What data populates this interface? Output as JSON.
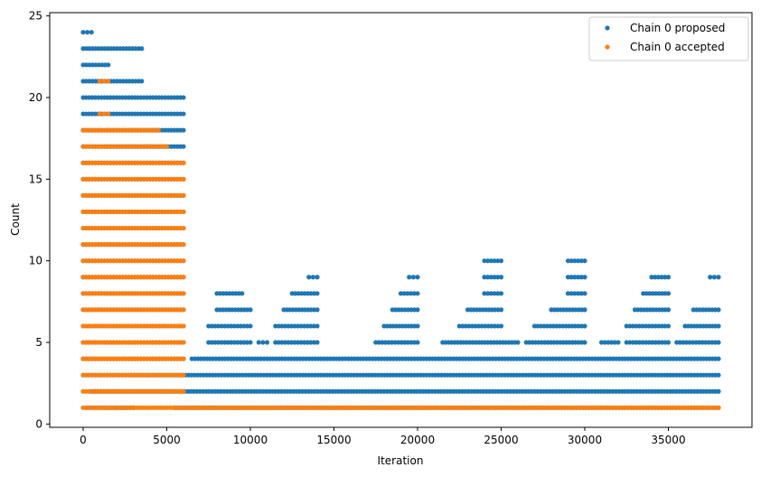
{
  "chart_data": {
    "type": "scatter",
    "title": "",
    "xlabel": "Iteration",
    "ylabel": "Count",
    "xlim": [
      -2000,
      40000
    ],
    "ylim": [
      -0.2,
      25.2
    ],
    "xticks": [
      0,
      5000,
      10000,
      15000,
      20000,
      25000,
      30000,
      35000
    ],
    "yticks": [
      0,
      5,
      10,
      15,
      20,
      25
    ],
    "legend_position": "top-right",
    "grid": false,
    "series": [
      {
        "name": "Chain 0 proposed",
        "color": "#1f77b4",
        "bands": [
          {
            "y": 1,
            "x_ranges": [
              [
                200,
                3000
              ],
              [
                5500,
                38000
              ]
            ]
          },
          {
            "y": 2,
            "x_ranges": [
              [
                500,
                38000
              ]
            ]
          },
          {
            "y": 3,
            "x_ranges": [
              [
                0,
                38000
              ]
            ]
          },
          {
            "y": 4,
            "x_ranges": [
              [
                0,
                6000
              ],
              [
                6500,
                38000
              ]
            ]
          },
          {
            "y": 5,
            "x_ranges": [
              [
                0,
                6000
              ],
              [
                7500,
                10000
              ],
              [
                10500,
                11000
              ],
              [
                11500,
                14000
              ],
              [
                17500,
                20000
              ],
              [
                21500,
                26000
              ],
              [
                26500,
                30000
              ],
              [
                31000,
                32000
              ],
              [
                32500,
                35000
              ],
              [
                35500,
                38000
              ]
            ]
          },
          {
            "y": 6,
            "x_ranges": [
              [
                0,
                6000
              ],
              [
                7500,
                10000
              ],
              [
                11500,
                14000
              ],
              [
                18000,
                20000
              ],
              [
                22500,
                25000
              ],
              [
                27000,
                30000
              ],
              [
                32500,
                35000
              ],
              [
                36000,
                38000
              ]
            ]
          },
          {
            "y": 7,
            "x_ranges": [
              [
                0,
                6000
              ],
              [
                8000,
                10000
              ],
              [
                12000,
                14000
              ],
              [
                18500,
                20000
              ],
              [
                23000,
                25000
              ],
              [
                28000,
                30000
              ],
              [
                33000,
                35000
              ],
              [
                36500,
                38000
              ]
            ]
          },
          {
            "y": 8,
            "x_ranges": [
              [
                0,
                6000
              ],
              [
                8000,
                9500
              ],
              [
                12500,
                14000
              ],
              [
                19000,
                20000
              ],
              [
                24000,
                25000
              ],
              [
                29000,
                30000
              ],
              [
                33500,
                35000
              ]
            ]
          },
          {
            "y": 9,
            "x_ranges": [
              [
                0,
                6000
              ],
              [
                13500,
                14000
              ],
              [
                19500,
                20000
              ],
              [
                24000,
                25000
              ],
              [
                29000,
                30000
              ],
              [
                34000,
                35000
              ],
              [
                37500,
                38000
              ]
            ]
          },
          {
            "y": 10,
            "x_ranges": [
              [
                0,
                6000
              ],
              [
                24000,
                25000
              ],
              [
                29000,
                30000
              ]
            ]
          },
          {
            "y": 11,
            "x_ranges": [
              [
                0,
                6000
              ]
            ]
          },
          {
            "y": 12,
            "x_ranges": [
              [
                0,
                6000
              ]
            ]
          },
          {
            "y": 13,
            "x_ranges": [
              [
                0,
                6000
              ]
            ]
          },
          {
            "y": 14,
            "x_ranges": [
              [
                0,
                6000
              ]
            ]
          },
          {
            "y": 15,
            "x_ranges": [
              [
                0,
                6000
              ]
            ]
          },
          {
            "y": 16,
            "x_ranges": [
              [
                0,
                6000
              ]
            ]
          },
          {
            "y": 17,
            "x_ranges": [
              [
                0,
                6000
              ]
            ]
          },
          {
            "y": 18,
            "x_ranges": [
              [
                0,
                6000
              ]
            ]
          },
          {
            "y": 19,
            "x_ranges": [
              [
                0,
                6000
              ]
            ]
          },
          {
            "y": 20,
            "x_ranges": [
              [
                0,
                6000
              ]
            ]
          },
          {
            "y": 21,
            "x_ranges": [
              [
                0,
                3500
              ]
            ]
          },
          {
            "y": 22,
            "x_ranges": [
              [
                0,
                1500
              ]
            ]
          },
          {
            "y": 23,
            "x_ranges": [
              [
                0,
                3500
              ]
            ]
          },
          {
            "y": 24,
            "x_ranges": [
              [
                0,
                500
              ]
            ]
          }
        ]
      },
      {
        "name": "Chain 0 accepted",
        "color": "#ff7f0e",
        "bands": [
          {
            "y": 1,
            "x_ranges": [
              [
                0,
                38000
              ]
            ]
          },
          {
            "y": 2,
            "x_ranges": [
              [
                0,
                6000
              ]
            ]
          },
          {
            "y": 3,
            "x_ranges": [
              [
                0,
                6000
              ]
            ]
          },
          {
            "y": 4,
            "x_ranges": [
              [
                0,
                6000
              ]
            ]
          },
          {
            "y": 5,
            "x_ranges": [
              [
                0,
                6000
              ]
            ]
          },
          {
            "y": 6,
            "x_ranges": [
              [
                0,
                6000
              ]
            ]
          },
          {
            "y": 7,
            "x_ranges": [
              [
                0,
                6000
              ]
            ]
          },
          {
            "y": 8,
            "x_ranges": [
              [
                0,
                6000
              ]
            ]
          },
          {
            "y": 9,
            "x_ranges": [
              [
                0,
                6000
              ]
            ]
          },
          {
            "y": 10,
            "x_ranges": [
              [
                0,
                6000
              ]
            ]
          },
          {
            "y": 11,
            "x_ranges": [
              [
                0,
                6000
              ]
            ]
          },
          {
            "y": 12,
            "x_ranges": [
              [
                0,
                6000
              ]
            ]
          },
          {
            "y": 13,
            "x_ranges": [
              [
                0,
                6000
              ]
            ]
          },
          {
            "y": 14,
            "x_ranges": [
              [
                0,
                6000
              ]
            ]
          },
          {
            "y": 15,
            "x_ranges": [
              [
                0,
                6000
              ]
            ]
          },
          {
            "y": 16,
            "x_ranges": [
              [
                0,
                6000
              ]
            ]
          },
          {
            "y": 17,
            "x_ranges": [
              [
                0,
                5000
              ]
            ]
          },
          {
            "y": 18,
            "x_ranges": [
              [
                0,
                4500
              ]
            ]
          },
          {
            "y": 19,
            "x_ranges": [
              [
                1000,
                1500
              ]
            ]
          },
          {
            "y": 21,
            "x_ranges": [
              [
                1000,
                1500
              ]
            ]
          }
        ]
      }
    ]
  }
}
